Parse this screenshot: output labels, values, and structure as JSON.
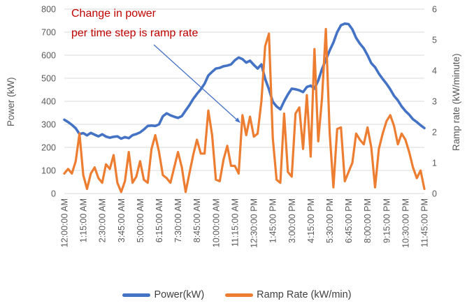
{
  "chart_data": {
    "type": "line",
    "title": "",
    "grid": "horizontal",
    "legend_position": "bottom",
    "x_axis": {
      "tick_labels": [
        "12:00:00 AM",
        "1:15:00 AM",
        "2:30:00 AM",
        "3:45:00 AM",
        "5:00:00 AM",
        "6:15:00 AM",
        "7:30:00 AM",
        "8:45:00 AM",
        "10:00:00 AM",
        "11:15:00 AM",
        "12:30:00 PM",
        "1:45:00 PM",
        "3:00:00 PM",
        "4:15:00 PM",
        "5:30:00 PM",
        "6:45:00 PM",
        "8:00:00 PM",
        "9:15:00 PM",
        "10:30:00 PM",
        "11:45:00 PM"
      ],
      "points_per_tick": 5,
      "interval_minutes": 15
    },
    "y_axis_left": {
      "label": "Power (kW)",
      "min": 0,
      "max": 800,
      "step": 100,
      "tick_labels": [
        "0",
        "100",
        "200",
        "300",
        "400",
        "500",
        "600",
        "700",
        "800"
      ]
    },
    "y_axis_right": {
      "label": "Ramp rate (kW/minute)",
      "min": 0,
      "max": 6,
      "step": 1,
      "tick_labels": [
        "0",
        "1",
        "2",
        "3",
        "4",
        "5",
        "6"
      ]
    },
    "series": [
      {
        "name": "Power(kW)",
        "axis": "left",
        "color": "#4472C4",
        "values": [
          320,
          310,
          298,
          283,
          258,
          262,
          252,
          263,
          255,
          248,
          257,
          247,
          242,
          246,
          248,
          238,
          245,
          240,
          253,
          258,
          265,
          278,
          293,
          295,
          293,
          300,
          335,
          348,
          339,
          333,
          328,
          336,
          360,
          383,
          410,
          432,
          452,
          476,
          512,
          528,
          542,
          545,
          552,
          555,
          560,
          578,
          590,
          583,
          568,
          576,
          558,
          542,
          560,
          497,
          452,
          398,
          378,
          365,
          400,
          430,
          455,
          452,
          448,
          440,
          462,
          468,
          455,
          490,
          540,
          580,
          620,
          655,
          700,
          730,
          737,
          735,
          712,
          675,
          650,
          630,
          600,
          565,
          548,
          520,
          497,
          476,
          452,
          424,
          404,
          378,
          358,
          342,
          322,
          310,
          296,
          284
        ]
      },
      {
        "name": "Ramp Rate (kW/min)",
        "axis": "right",
        "color": "#ED7D31",
        "values": [
          0.65,
          0.8,
          0.65,
          1.05,
          1.95,
          0.6,
          0.15,
          0.65,
          0.85,
          0.5,
          0.35,
          0.95,
          0.8,
          1.25,
          0.35,
          0.05,
          0.4,
          1.35,
          0.35,
          0.55,
          1.05,
          0.45,
          0.35,
          1.45,
          1.9,
          1.35,
          0.6,
          0.5,
          0.35,
          0.85,
          1.35,
          0.85,
          0.05,
          0.65,
          1.25,
          1.75,
          1.3,
          1.3,
          2.7,
          1.9,
          0.45,
          0.4,
          1.1,
          1.55,
          0.9,
          0.9,
          0.65,
          2.55,
          1.9,
          2.5,
          1.85,
          1.95,
          3.0,
          4.8,
          5.2,
          1.8,
          0.45,
          0.35,
          2.6,
          0.7,
          0.55,
          2.6,
          2.8,
          1.45,
          3.2,
          1.2,
          4.7,
          1.7,
          3.1,
          5.35,
          2.0,
          0.2,
          2.1,
          2.15,
          0.4,
          0.7,
          1.0,
          1.95,
          1.75,
          1.6,
          2.15,
          1.5,
          0.2,
          1.45,
          1.95,
          2.35,
          2.55,
          2.2,
          1.6,
          1.95,
          1.75,
          1.35,
          0.85,
          0.5,
          0.75,
          0.15
        ]
      }
    ],
    "annotation": {
      "line1": "Change in power",
      "line2": "per time step is ramp rate",
      "color": "#C00000",
      "arrow_color": "#4472C4"
    },
    "style": {
      "gridline_color": "#D9D9D9",
      "tick_text_color": "#595959"
    }
  },
  "legend": {
    "power_label": "Power(kW)",
    "ramp_label": "Ramp Rate (kW/min)"
  }
}
